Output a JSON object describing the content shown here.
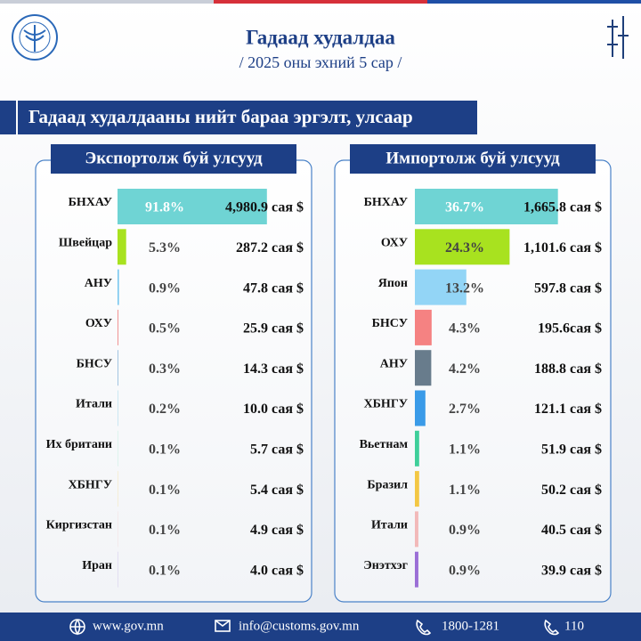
{
  "header": {
    "title": "Гадаад худалдаа",
    "subtitle": "/ 2025 оны эхний 5 сар /"
  },
  "banner": "Гадаад худалдааны нийт бараа эргэлт, улсаар",
  "chart_data": [
    {
      "type": "bar",
      "orientation": "horizontal",
      "title": "Экспортолж буй улсууд",
      "categories": [
        "БНХАУ",
        "Швейцар",
        "АНУ",
        "ОХУ",
        "БНСУ",
        "Итали",
        "Их британи",
        "ХБНГУ",
        "Киргизстан",
        "Иран"
      ],
      "values": [
        91.8,
        5.3,
        0.9,
        0.5,
        0.3,
        0.2,
        0.1,
        0.1,
        0.1,
        0.1
      ],
      "value_labels": [
        "91.8%",
        "5.3%",
        "0.9%",
        "0.5%",
        "0.3%",
        "0.2%",
        "0.1%",
        "0.1%",
        "0.1%",
        "0.1%"
      ],
      "amounts": [
        4980.9,
        287.2,
        47.8,
        25.9,
        14.3,
        10.0,
        5.7,
        5.4,
        4.9,
        4.0
      ],
      "amount_labels": [
        "4,980.9 сая $",
        "287.2 сая $",
        "47.8 сая $",
        "25.9 сая $",
        "14.3 сая $",
        "10.0 сая $",
        "5.7 сая $",
        "5.4 сая $",
        "4.9 сая $",
        "4.0 сая $"
      ],
      "colors": [
        "#6fd4d4",
        "#a8e21f",
        "#7cc8ef",
        "#f08a8a",
        "#5c98cc",
        "#7ec8e3",
        "#6ee0b6",
        "#f3c744",
        "#f0b7b7",
        "#9b78d6"
      ],
      "xlim": [
        0,
        93
      ]
    },
    {
      "type": "bar",
      "orientation": "horizontal",
      "title": "Импортолж буй улсууд",
      "categories": [
        "БНХАУ",
        "ОХУ",
        "Япон",
        "БНСУ",
        "АНУ",
        "ХБНГУ",
        "Вьетнам",
        "Бразил",
        "Итали",
        "Энэтхэг"
      ],
      "values": [
        36.7,
        24.3,
        13.2,
        4.3,
        4.2,
        2.7,
        1.1,
        1.1,
        0.9,
        0.9
      ],
      "value_labels": [
        "36.7%",
        "24.3%",
        "13.2%",
        "4.3%",
        "4.2%",
        "2.7%",
        "1.1%",
        "1.1%",
        "0.9%",
        "0.9%"
      ],
      "amounts": [
        1665.8,
        1101.6,
        597.8,
        195.6,
        188.8,
        121.1,
        51.9,
        50.2,
        40.5,
        39.9
      ],
      "amount_labels": [
        "1,665.8 сая $",
        "1,101.6 сая $",
        "597.8 сая $",
        "195.6сая $",
        "188.8 сая $",
        "121.1 сая $",
        "51.9 сая $",
        "50.2 сая $",
        "40.5 сая $",
        "39.9 сая $"
      ],
      "colors": [
        "#6fd4d4",
        "#a8e21f",
        "#93d5f6",
        "#f58282",
        "#687c8c",
        "#3a9be8",
        "#3ecf9a",
        "#f3c744",
        "#f2b9b9",
        "#9b6fd6"
      ],
      "xlim": [
        0,
        37
      ]
    }
  ],
  "footer": {
    "website": "www.gov.mn",
    "email": "info@customs.gov.mn",
    "phone": "1800-1281",
    "hotline": "110"
  }
}
